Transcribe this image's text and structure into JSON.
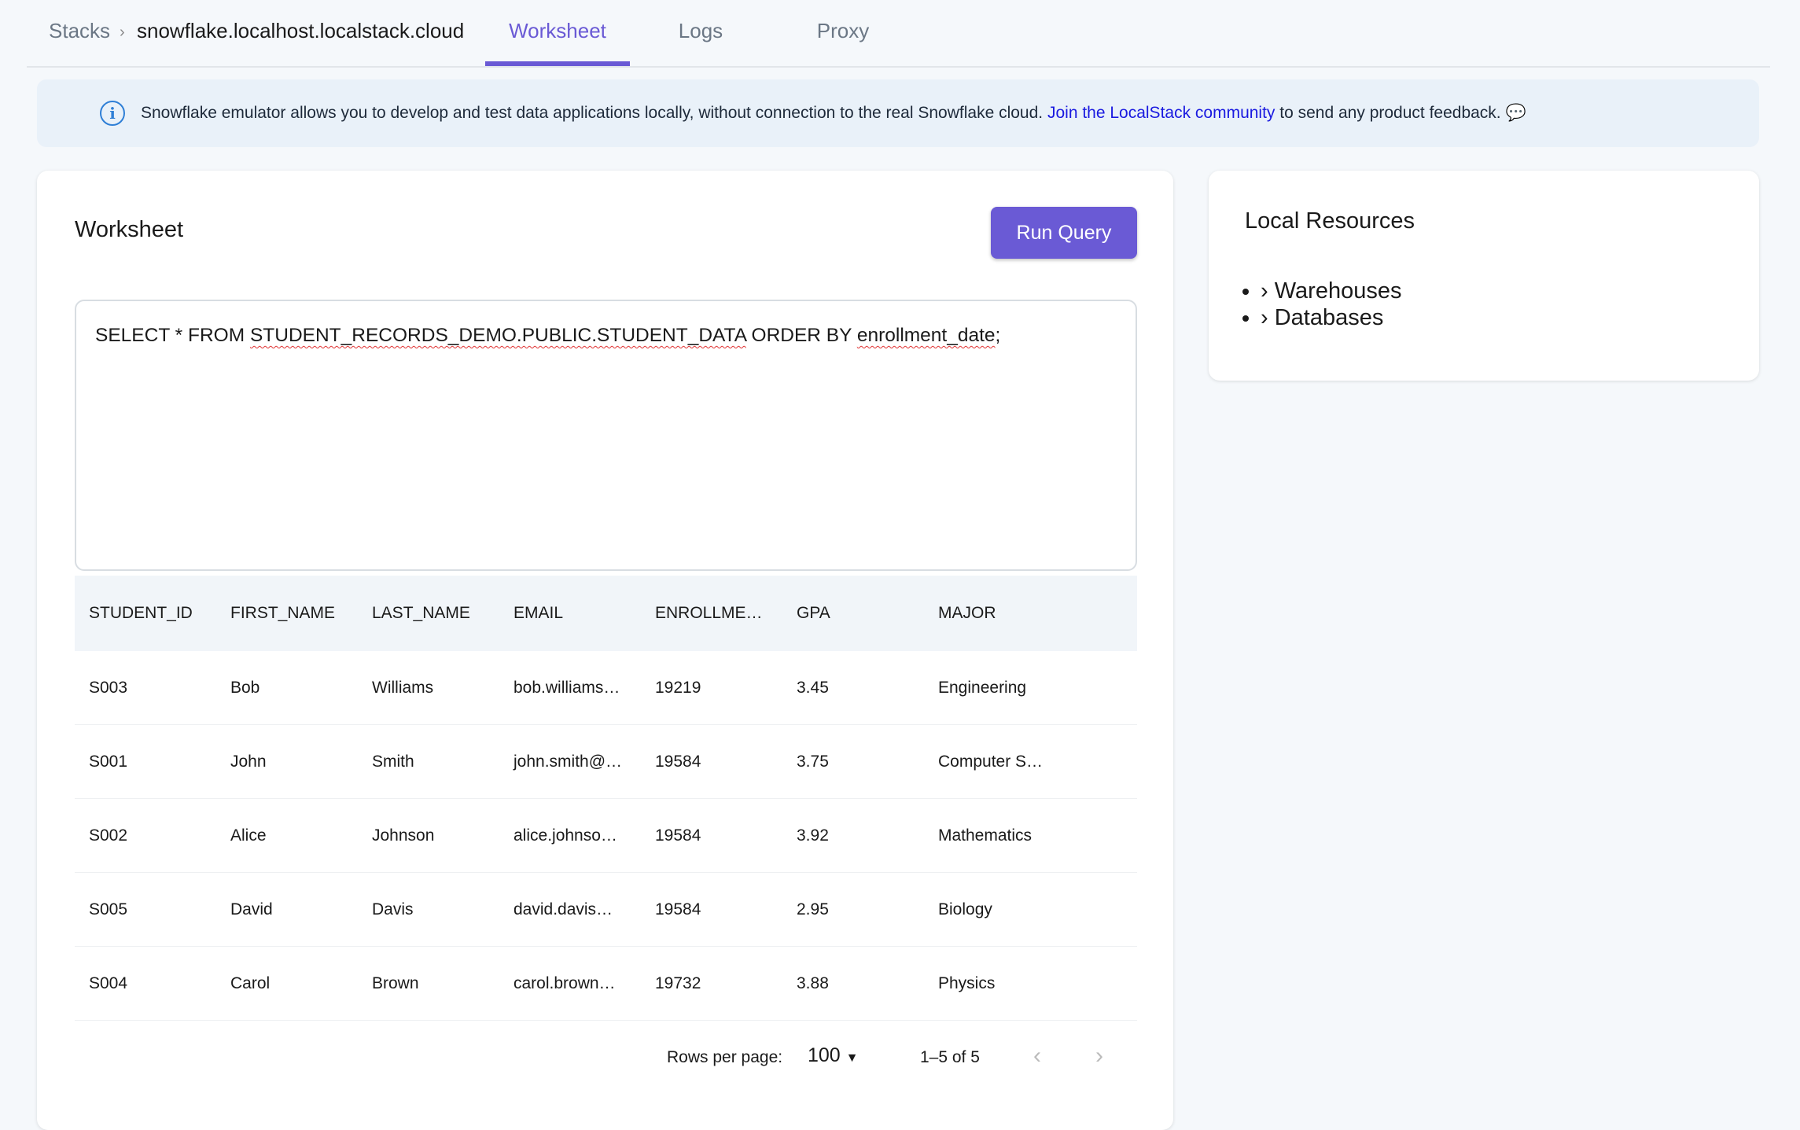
{
  "header": {
    "breadcrumb": [
      "Stacks",
      "snowflake.localhost.localstack.cloud"
    ],
    "tabs": [
      {
        "label": "Worksheet",
        "active": true
      },
      {
        "label": "Logs"
      },
      {
        "label": "Proxy"
      }
    ],
    "accent": "#6a5ad5"
  },
  "banner": {
    "text": "Snowflake emulator allows you to develop and test data applications locally, without connection to the real Snowflake cloud.",
    "link": "Join the LocalStack community",
    "suffix": "to send any product feedback.",
    "icon": "info-icon"
  },
  "worksheet": {
    "title": "Worksheet",
    "run_label": "Run Query",
    "query_parts": [
      "SELECT * FROM ",
      "STUDENT_RECORDS_DEMO.PUBLIC.STUDENT_DATA",
      " ORDER BY ",
      "enrollment_date",
      ";"
    ],
    "columns": [
      "STUDENT_ID",
      "FIRST_NAME",
      "LAST_NAME",
      "EMAIL",
      "ENROLLME…",
      "GPA",
      "MAJOR"
    ],
    "rows": [
      [
        "S003",
        "Bob",
        "Williams",
        "bob.williams…",
        "19219",
        "3.45",
        "Engineering"
      ],
      [
        "S001",
        "John",
        "Smith",
        "john.smith@…",
        "19584",
        "3.75",
        "Computer S…"
      ],
      [
        "S002",
        "Alice",
        "Johnson",
        "alice.johnso…",
        "19584",
        "3.92",
        "Mathematics"
      ],
      [
        "S005",
        "David",
        "Davis",
        "david.davis…",
        "19584",
        "2.95",
        "Biology"
      ],
      [
        "S004",
        "Carol",
        "Brown",
        "carol.brown…",
        "19732",
        "3.88",
        "Physics"
      ]
    ],
    "pagination": {
      "rows_per_page_label": "Rows per page:",
      "rows_per_page": "100",
      "range": "1–5 of 5"
    }
  },
  "resources": {
    "title": "Local Resources",
    "items": [
      "Warehouses",
      "Databases"
    ]
  }
}
